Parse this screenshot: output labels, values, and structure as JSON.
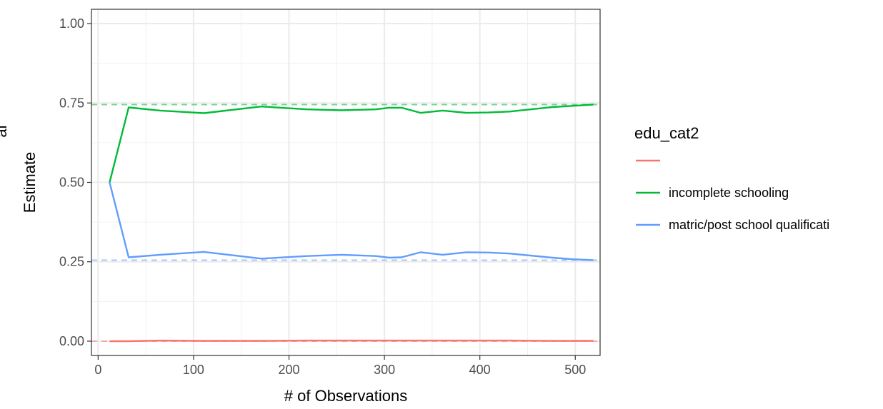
{
  "chart_data": {
    "type": "line",
    "xlabel": "# of Observations",
    "ylabel": "Estimate",
    "ylabel_fragment": "al",
    "xlim": [
      -7,
      526
    ],
    "ylim": [
      -0.045,
      1.045
    ],
    "x_ticks": [
      0,
      100,
      200,
      300,
      400,
      500
    ],
    "x_tick_labels": [
      "0",
      "100",
      "200",
      "300",
      "400",
      "500"
    ],
    "y_ticks": [
      0,
      0.25,
      0.5,
      0.75,
      1.0
    ],
    "y_tick_labels": [
      "0.00",
      "0.25",
      "0.50",
      "0.75",
      "1.00"
    ],
    "grid": true,
    "legend": {
      "title": "edu_cat2",
      "position": "right",
      "entries": [
        "",
        "incomplete schooling",
        "matric/post school qualificati"
      ]
    },
    "series": [
      {
        "name": "",
        "color": "#F8766D",
        "reference": 0.0,
        "x": [
          12,
          32,
          65,
          111,
          171,
          219,
          255,
          291,
          305,
          318,
          338,
          361,
          386,
          409,
          431,
          476,
          497,
          519
        ],
        "values": [
          0.0,
          0.0,
          0.002,
          0.001,
          0.001,
          0.002,
          0.002,
          0.002,
          0.002,
          0.002,
          0.002,
          0.002,
          0.002,
          0.002,
          0.002,
          0.001,
          0.001,
          0.001
        ]
      },
      {
        "name": "incomplete schooling",
        "color": "#00BA38",
        "reference": 0.745,
        "x": [
          12,
          32,
          65,
          111,
          171,
          219,
          255,
          291,
          305,
          318,
          338,
          361,
          386,
          409,
          431,
          476,
          497,
          519
        ],
        "values": [
          0.5,
          0.736,
          0.726,
          0.718,
          0.739,
          0.73,
          0.727,
          0.73,
          0.735,
          0.735,
          0.719,
          0.726,
          0.719,
          0.72,
          0.723,
          0.737,
          0.741,
          0.745
        ]
      },
      {
        "name": "matric/post school qualificati",
        "color": "#619CFF",
        "reference": 0.255,
        "x": [
          12,
          32,
          65,
          111,
          171,
          219,
          255,
          291,
          305,
          318,
          338,
          361,
          386,
          409,
          431,
          476,
          497,
          519
        ],
        "values": [
          0.5,
          0.264,
          0.272,
          0.281,
          0.26,
          0.268,
          0.272,
          0.268,
          0.263,
          0.264,
          0.28,
          0.272,
          0.28,
          0.279,
          0.276,
          0.263,
          0.258,
          0.255
        ]
      }
    ]
  }
}
